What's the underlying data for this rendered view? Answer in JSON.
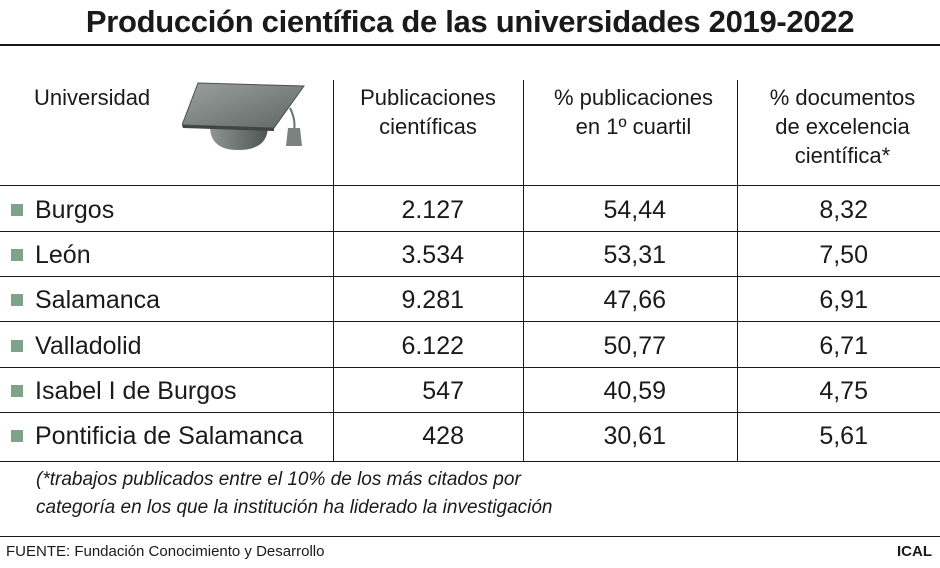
{
  "title": "Producción científica de las universidades 2019-2022",
  "headers": {
    "universidad": "Universidad",
    "col1": [
      "Publicaciones",
      "científicas"
    ],
    "col2": [
      "% publicaciones",
      "en 1º cuartil"
    ],
    "col3": [
      "% documentos",
      "de excelencia",
      "científica*"
    ]
  },
  "colors": {
    "bullet": "#7ea389",
    "cap": "#7f8784"
  },
  "icons": {
    "header_illustration": "graduation-cap-icon"
  },
  "chart_data": {
    "type": "table",
    "title": "Producción científica de las universidades 2019-2022",
    "columns": [
      "Universidad",
      "Publicaciones científicas",
      "% publicaciones en 1º cuartil",
      "% documentos de excelencia científica*"
    ],
    "rows": [
      {
        "universidad": "Burgos",
        "publicaciones": "2.127",
        "q1": "54,44",
        "excelencia": "8,32"
      },
      {
        "universidad": "León",
        "publicaciones": "3.534",
        "q1": "53,31",
        "excelencia": "7,50"
      },
      {
        "universidad": "Salamanca",
        "publicaciones": "9.281",
        "q1": "47,66",
        "excelencia": "6,91"
      },
      {
        "universidad": "Valladolid",
        "publicaciones": "6.122",
        "q1": "50,77",
        "excelencia": "6,71"
      },
      {
        "universidad": "Isabel I de Burgos",
        "publicaciones": "547",
        "q1": "40,59",
        "excelencia": "4,75"
      },
      {
        "universidad": "Pontificia de Salamanca",
        "publicaciones": "428",
        "q1": "30,61",
        "excelencia": "5,61"
      }
    ]
  },
  "note": [
    "(*trabajos publicados entre el 10% de los más citados por",
    "categoría en los que la institución ha liderado la investigación"
  ],
  "source": "FUENTE: Fundación Conocimiento y Desarrollo",
  "agency": "ICAL"
}
